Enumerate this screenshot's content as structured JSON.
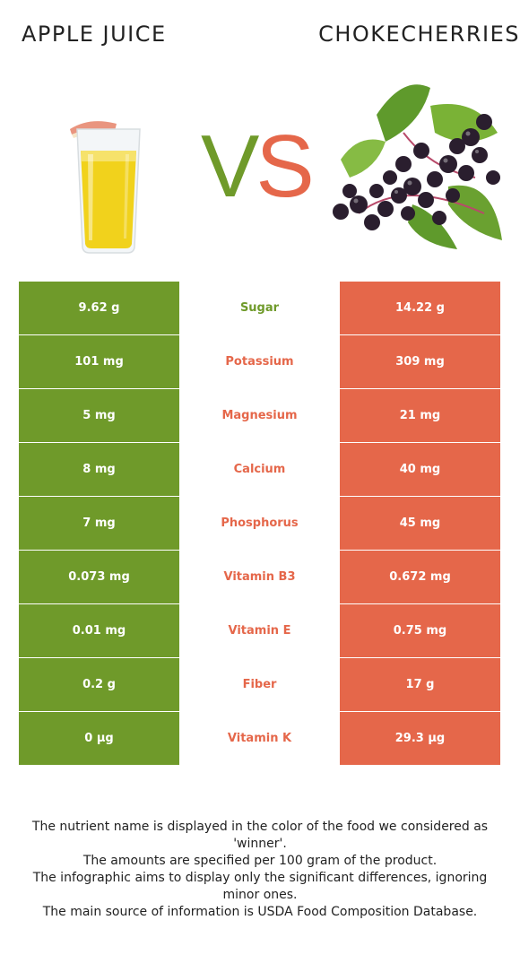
{
  "header": {
    "left_title": "APPLE JUICE",
    "right_title": "CHOKECHERRIES",
    "vs_v": "V",
    "vs_s": "S"
  },
  "colors": {
    "apple_juice": "#6f9a2a",
    "chokecherries": "#e5674a"
  },
  "rows": [
    {
      "left": "9.62 g",
      "nutrient": "Sugar",
      "right": "14.22 g",
      "winner": "apple_juice"
    },
    {
      "left": "101 mg",
      "nutrient": "Potassium",
      "right": "309 mg",
      "winner": "chokecherries"
    },
    {
      "left": "5 mg",
      "nutrient": "Magnesium",
      "right": "21 mg",
      "winner": "chokecherries"
    },
    {
      "left": "8 mg",
      "nutrient": "Calcium",
      "right": "40 mg",
      "winner": "chokecherries"
    },
    {
      "left": "7 mg",
      "nutrient": "Phosphorus",
      "right": "45 mg",
      "winner": "chokecherries"
    },
    {
      "left": "0.073 mg",
      "nutrient": "Vitamin B3",
      "right": "0.672 mg",
      "winner": "chokecherries"
    },
    {
      "left": "0.01 mg",
      "nutrient": "Vitamin E",
      "right": "0.75 mg",
      "winner": "chokecherries"
    },
    {
      "left": "0.2 g",
      "nutrient": "Fiber",
      "right": "17 g",
      "winner": "chokecherries"
    },
    {
      "left": "0 µg",
      "nutrient": "Vitamin K",
      "right": "29.3 µg",
      "winner": "chokecherries"
    }
  ],
  "footer": {
    "line1": "The nutrient name is displayed in the color of the food we considered as 'winner'.",
    "line2": "The amounts are specified per 100 gram of the product.",
    "line3": "The infographic aims to display only the significant differences, ignoring minor ones.",
    "line4": "The main source of information is USDA Food Composition Database."
  }
}
